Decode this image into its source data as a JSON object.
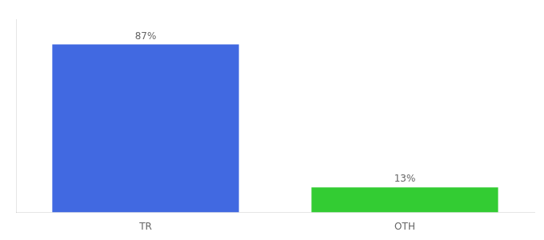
{
  "chart_data": {
    "type": "bar",
    "categories": [
      "TR",
      "OTH"
    ],
    "values": [
      87,
      13
    ],
    "value_labels": [
      "87%",
      "13%"
    ],
    "colors": [
      "#4169e1",
      "#33cc33"
    ],
    "ylim": [
      0,
      100
    ],
    "grid": false,
    "tick_labels": "x",
    "data_labels": true
  }
}
